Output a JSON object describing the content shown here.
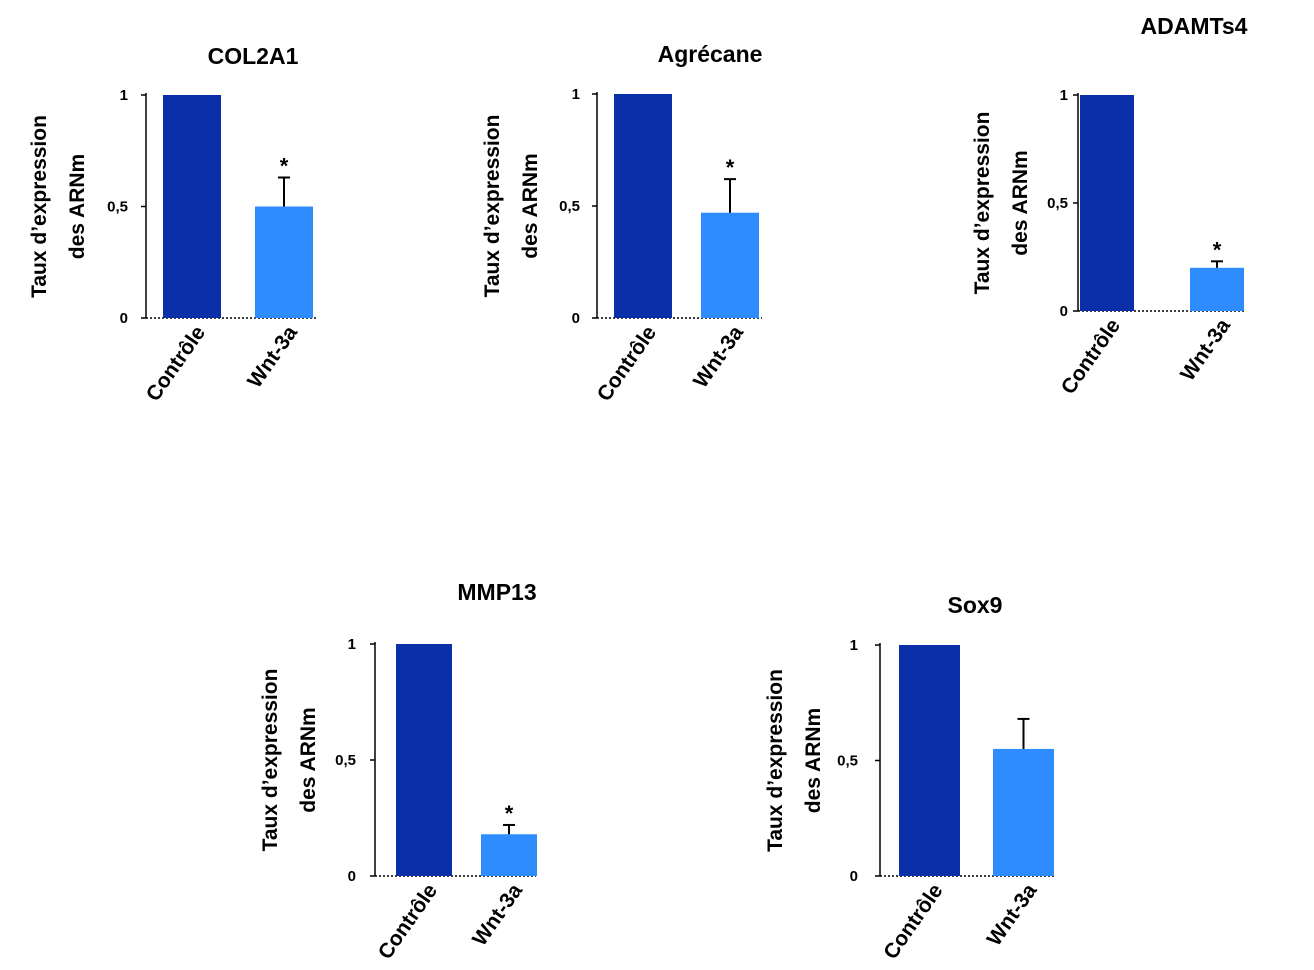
{
  "colors": {
    "controle": "#0a2fa8",
    "wnt": "#2f8cff",
    "axis": "#000000"
  },
  "chart_data": [
    {
      "type": "bar",
      "title": "COL2A1",
      "ylabel_lines": [
        "Taux d’expression",
        "des ARNm"
      ],
      "categories": [
        "Contrôle",
        "Wnt-3a"
      ],
      "values": [
        1,
        0.5
      ],
      "errors": [
        0,
        0.13
      ],
      "significance": [
        "",
        "*"
      ],
      "ylim": [
        0,
        1
      ],
      "yticks": [
        0,
        0.5,
        1
      ],
      "ytick_labels": [
        "0",
        "0,5",
        "1"
      ],
      "grid": false,
      "legend": "none"
    },
    {
      "type": "bar",
      "title": "Agrécane",
      "ylabel_lines": [
        "Taux d’expression",
        "des ARNm"
      ],
      "categories": [
        "Contrôle",
        "Wnt-3a"
      ],
      "values": [
        1,
        0.47
      ],
      "errors": [
        0,
        0.15
      ],
      "significance": [
        "",
        "*"
      ],
      "ylim": [
        0,
        1
      ],
      "yticks": [
        0,
        0.5,
        1
      ],
      "ytick_labels": [
        "0",
        "0,5",
        "1"
      ],
      "grid": false,
      "legend": "none"
    },
    {
      "type": "bar",
      "title": "ADAMTs4",
      "ylabel_lines": [
        "Taux d’expression",
        "des ARNm"
      ],
      "categories": [
        "Contrôle",
        "Wnt-3a"
      ],
      "values": [
        1,
        0.2
      ],
      "errors": [
        0,
        0.03
      ],
      "significance": [
        "",
        "*"
      ],
      "ylim": [
        0,
        1
      ],
      "yticks": [
        0,
        0.5,
        1
      ],
      "ytick_labels": [
        "0",
        "0,5",
        "1"
      ],
      "grid": false,
      "legend": "none"
    },
    {
      "type": "bar",
      "title": "MMP13",
      "ylabel_lines": [
        "Taux d’expression",
        "des ARNm"
      ],
      "categories": [
        "Contrôle",
        "Wnt-3a"
      ],
      "values": [
        1,
        0.18
      ],
      "errors": [
        0,
        0.04
      ],
      "significance": [
        "",
        "*"
      ],
      "ylim": [
        0,
        1
      ],
      "yticks": [
        0,
        0.5,
        1
      ],
      "ytick_labels": [
        "0",
        "0,5",
        "1"
      ],
      "grid": false,
      "legend": "none"
    },
    {
      "type": "bar",
      "title": "Sox9",
      "ylabel_lines": [
        "Taux d’expression",
        "des ARNm"
      ],
      "categories": [
        "Contrôle",
        "Wnt-3a"
      ],
      "values": [
        1,
        0.55
      ],
      "errors": [
        0,
        0.13
      ],
      "significance": [
        "",
        ""
      ],
      "ylim": [
        0,
        1
      ],
      "yticks": [
        0,
        0.5,
        1
      ],
      "ytick_labels": [
        "0",
        "0,5",
        "1"
      ],
      "grid": false,
      "legend": "none"
    }
  ]
}
